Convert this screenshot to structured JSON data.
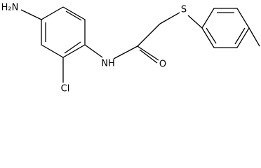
{
  "nodes": [
    {
      "label": "H₂N"
    },
    {
      "label": "Cl"
    },
    {
      "label": "NH"
    },
    {
      "label": "O"
    },
    {
      "label": "S"
    }
  ]
}
